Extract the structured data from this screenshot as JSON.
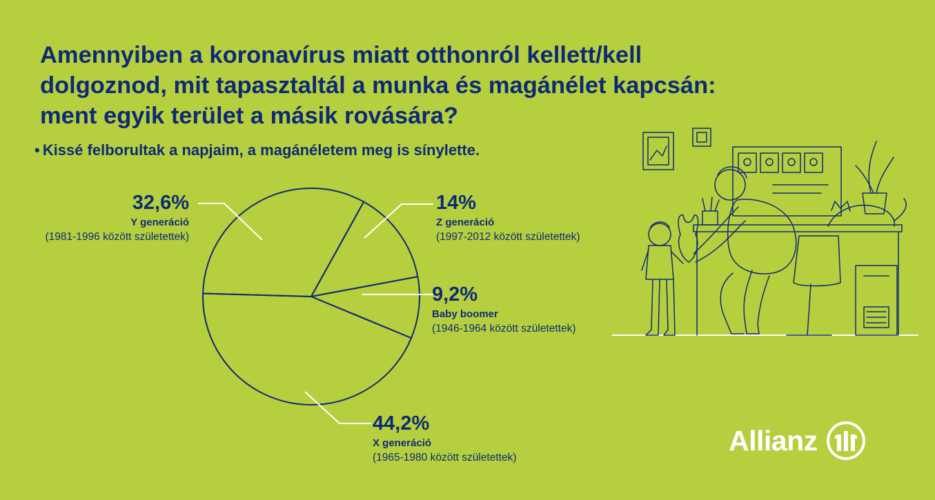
{
  "title": "Amennyiben a koronavírus miatt otthonról kellett/kell dolgoznod, mit tapasztaltál a munka és magánélet kapcsán: ment egyik terület a másik rovására?",
  "subtitle": "Kissé felborultak a napjaim, a magánéletem meg is sínylette.",
  "logo_text": "Allianz",
  "colors": {
    "background": "#b6cf3f",
    "ink": "#0f2a75",
    "logo": "#ffffff"
  },
  "chart_data": {
    "type": "pie",
    "title": "Amennyiben a koronavírus miatt otthonról kellett/kell dolgoznod, mit tapasztaltál a munka és magánélet kapcsán: ment egyik terület a másik rovására?",
    "subtitle": "Kissé felborultak a napjaim, a magánéletem meg is sínylette.",
    "slices": [
      {
        "label": "14%",
        "name": "Z generáció",
        "years": "(1997-2012 között születettek)",
        "value": 14
      },
      {
        "label": "9,2%",
        "name": "Baby boomer",
        "years": "(1946-1964 között születettek)",
        "value": 9.2
      },
      {
        "label": "44,2%",
        "name": "X generáció",
        "years": "(1965-1980 között születettek)",
        "value": 44.2
      },
      {
        "label": "32,6%",
        "name": "Y generáció",
        "years": "(1981-1996 között születettek)",
        "value": 32.6
      }
    ]
  }
}
